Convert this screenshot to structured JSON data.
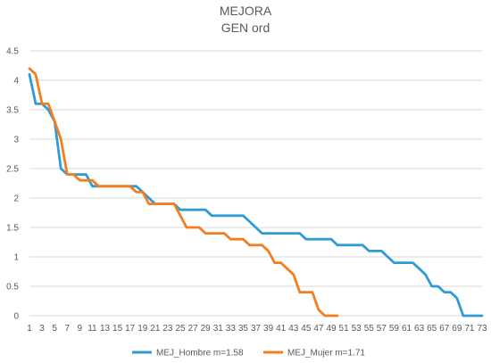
{
  "chart_data": {
    "type": "line",
    "title": "MEJORA",
    "subtitle": "GEN ord",
    "xlabel": "",
    "ylabel": "",
    "ylim": [
      0,
      4.5
    ],
    "yticks": [
      "0",
      "0.5",
      "1",
      "1.5",
      "2",
      "2.5",
      "3",
      "3.5",
      "4",
      "4.5"
    ],
    "xticks": [
      "1",
      "3",
      "5",
      "7",
      "9",
      "11",
      "13",
      "15",
      "17",
      "19",
      "21",
      "23",
      "25",
      "27",
      "29",
      "31",
      "33",
      "35",
      "37",
      "39",
      "41",
      "43",
      "45",
      "47",
      "49",
      "51",
      "53",
      "55",
      "57",
      "59",
      "61",
      "63",
      "65",
      "67",
      "69",
      "71",
      "73"
    ],
    "xlim": [
      1,
      73
    ],
    "grid": "horizontal",
    "legend": "bottom",
    "series": [
      {
        "name": "MEJ_Hombre m=1.58",
        "color": "#2e9bd6",
        "x": [
          1,
          2,
          3,
          4,
          5,
          6,
          7,
          8,
          9,
          10,
          11,
          12,
          13,
          14,
          15,
          16,
          17,
          18,
          19,
          20,
          21,
          22,
          23,
          24,
          25,
          26,
          27,
          28,
          29,
          30,
          31,
          32,
          33,
          34,
          35,
          36,
          37,
          38,
          39,
          40,
          41,
          42,
          43,
          44,
          45,
          46,
          47,
          48,
          49,
          50,
          51,
          52,
          53,
          54,
          55,
          56,
          57,
          58,
          59,
          60,
          61,
          62,
          63,
          64,
          65,
          66,
          67,
          68,
          69,
          70,
          71,
          72,
          73
        ],
        "values": [
          4.1,
          3.6,
          3.6,
          3.5,
          3.3,
          2.5,
          2.4,
          2.4,
          2.4,
          2.4,
          2.2,
          2.2,
          2.2,
          2.2,
          2.2,
          2.2,
          2.2,
          2.2,
          2.1,
          2.0,
          1.9,
          1.9,
          1.9,
          1.9,
          1.8,
          1.8,
          1.8,
          1.8,
          1.8,
          1.7,
          1.7,
          1.7,
          1.7,
          1.7,
          1.7,
          1.6,
          1.5,
          1.4,
          1.4,
          1.4,
          1.4,
          1.4,
          1.4,
          1.4,
          1.3,
          1.3,
          1.3,
          1.3,
          1.3,
          1.2,
          1.2,
          1.2,
          1.2,
          1.2,
          1.1,
          1.1,
          1.1,
          1.0,
          0.9,
          0.9,
          0.9,
          0.9,
          0.8,
          0.7,
          0.5,
          0.5,
          0.4,
          0.4,
          0.3,
          0.0,
          0.0,
          0.0,
          0.0
        ]
      },
      {
        "name": "MEJ_Mujer m=1.71",
        "color": "#f47d20",
        "x": [
          1,
          2,
          3,
          4,
          5,
          6,
          7,
          8,
          9,
          10,
          11,
          12,
          13,
          14,
          15,
          16,
          17,
          18,
          19,
          20,
          21,
          22,
          23,
          24,
          25,
          26,
          27,
          28,
          29,
          30,
          31,
          32,
          33,
          34,
          35,
          36,
          37,
          38,
          39,
          40,
          41,
          42,
          43,
          44,
          45,
          46,
          47,
          48,
          49,
          50
        ],
        "values": [
          4.2,
          4.1,
          3.6,
          3.6,
          3.3,
          3.0,
          2.4,
          2.4,
          2.3,
          2.3,
          2.3,
          2.2,
          2.2,
          2.2,
          2.2,
          2.2,
          2.2,
          2.1,
          2.1,
          1.9,
          1.9,
          1.9,
          1.9,
          1.9,
          1.7,
          1.5,
          1.5,
          1.5,
          1.4,
          1.4,
          1.4,
          1.4,
          1.3,
          1.3,
          1.3,
          1.2,
          1.2,
          1.2,
          1.1,
          0.9,
          0.9,
          0.8,
          0.7,
          0.4,
          0.4,
          0.4,
          0.1,
          0.0,
          0.0,
          0.0
        ]
      }
    ]
  }
}
